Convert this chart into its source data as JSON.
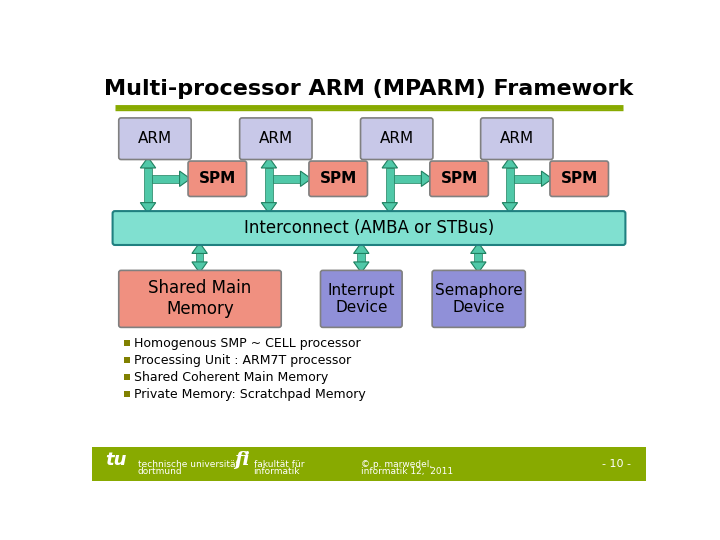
{
  "title": "Multi-processor ARM (MPARM) Framework",
  "title_fontsize": 16,
  "background_color": "#ffffff",
  "arm_color": "#c8c8e8",
  "spm_color": "#f09080",
  "interconnect_color": "#80e0d0",
  "shared_mem_color": "#f09080",
  "interrupt_color": "#9090d8",
  "semaphore_color": "#9090d8",
  "arrow_color": "#50c8a8",
  "arrow_edge": "#208060",
  "bullet_color": "#808000",
  "arm_labels": [
    "ARM",
    "ARM",
    "ARM",
    "ARM"
  ],
  "spm_labels": [
    "SPM",
    "SPM",
    "SPM",
    "SPM"
  ],
  "interconnect_label": "Interconnect (AMBA or STBus)",
  "shared_mem_label": "Shared Main\nMemory",
  "interrupt_label": "Interrupt\nDevice",
  "semaphore_label": "Semaphore\nDevice",
  "bullets": [
    "Homogenous SMP ~ CELL processor",
    "Processing Unit : ARM7T processor",
    "Shared Coherent Main Memory",
    "Private Memory: Scratchpad Memory"
  ],
  "footer_left1": "technische universität",
  "footer_left2": "dortmund",
  "footer_center_text1": "fakultät für",
  "footer_center_text2": "informatik",
  "footer_right1": "© p. marwedel,",
  "footer_right2": "informatik 12,  2011",
  "footer_page": "- 10 -",
  "green_line_color": "#88aa00",
  "footer_bg": "#88aa00",
  "box_edge": "#808080"
}
